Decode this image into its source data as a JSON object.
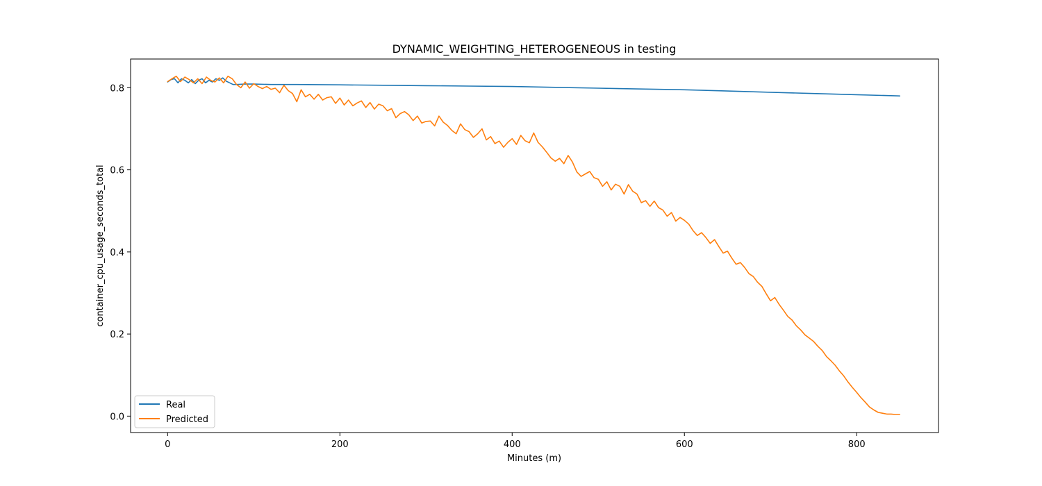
{
  "chart_data": {
    "type": "line",
    "title": "DYNAMIC_WEIGHTING_HETEROGENEOUS in testing",
    "xlabel": "Minutes (m)",
    "ylabel": "container_cpu_usage_seconds_total",
    "xlim": [
      -43,
      895
    ],
    "ylim": [
      -0.04,
      0.87
    ],
    "xticks": [
      0,
      200,
      400,
      600,
      800
    ],
    "yticks": [
      0.0,
      0.2,
      0.4,
      0.6,
      0.8
    ],
    "ytick_labels": [
      "0.0",
      "0.2",
      "0.4",
      "0.6",
      "0.8"
    ],
    "grid": false,
    "legend_position": "lower-left",
    "series": [
      {
        "name": "Real",
        "color": "#1f77b4",
        "x": [
          0,
          4,
          8,
          12,
          16,
          20,
          24,
          28,
          32,
          36,
          40,
          44,
          48,
          52,
          56,
          60,
          64,
          68,
          72,
          76,
          80,
          90,
          100,
          120,
          150,
          200,
          250,
          300,
          350,
          400,
          450,
          500,
          550,
          600,
          650,
          700,
          750,
          800,
          850
        ],
        "y": [
          0.814,
          0.82,
          0.822,
          0.812,
          0.822,
          0.818,
          0.812,
          0.82,
          0.81,
          0.818,
          0.822,
          0.812,
          0.818,
          0.814,
          0.822,
          0.818,
          0.824,
          0.816,
          0.812,
          0.808,
          0.808,
          0.809,
          0.809,
          0.808,
          0.808,
          0.807,
          0.806,
          0.805,
          0.804,
          0.803,
          0.801,
          0.799,
          0.797,
          0.795,
          0.792,
          0.789,
          0.786,
          0.783,
          0.78
        ]
      },
      {
        "name": "Predicted",
        "color": "#ff7f0e",
        "x": [
          0,
          5,
          10,
          15,
          20,
          25,
          30,
          35,
          40,
          45,
          50,
          55,
          60,
          65,
          70,
          75,
          80,
          85,
          90,
          95,
          100,
          105,
          110,
          115,
          120,
          125,
          130,
          135,
          140,
          145,
          150,
          155,
          160,
          165,
          170,
          175,
          180,
          185,
          190,
          195,
          200,
          205,
          210,
          215,
          220,
          225,
          230,
          235,
          240,
          245,
          250,
          255,
          260,
          265,
          270,
          275,
          280,
          285,
          290,
          295,
          300,
          305,
          310,
          315,
          320,
          325,
          330,
          335,
          340,
          345,
          350,
          355,
          360,
          365,
          370,
          375,
          380,
          385,
          390,
          395,
          400,
          405,
          410,
          415,
          420,
          425,
          430,
          435,
          440,
          445,
          450,
          455,
          460,
          465,
          470,
          475,
          480,
          485,
          490,
          495,
          500,
          505,
          510,
          515,
          520,
          525,
          530,
          535,
          540,
          545,
          550,
          555,
          560,
          565,
          570,
          575,
          580,
          585,
          590,
          595,
          600,
          605,
          610,
          615,
          620,
          625,
          630,
          635,
          640,
          645,
          650,
          655,
          660,
          665,
          670,
          675,
          680,
          685,
          690,
          695,
          700,
          705,
          710,
          715,
          720,
          725,
          730,
          735,
          740,
          745,
          750,
          755,
          760,
          765,
          770,
          775,
          780,
          785,
          790,
          795,
          800,
          805,
          810,
          815,
          820,
          825,
          830,
          835,
          840,
          845,
          850
        ],
        "y": [
          0.815,
          0.822,
          0.828,
          0.815,
          0.826,
          0.82,
          0.812,
          0.822,
          0.81,
          0.826,
          0.818,
          0.814,
          0.824,
          0.812,
          0.828,
          0.822,
          0.808,
          0.8,
          0.814,
          0.799,
          0.81,
          0.803,
          0.798,
          0.803,
          0.796,
          0.799,
          0.788,
          0.806,
          0.793,
          0.786,
          0.766,
          0.795,
          0.778,
          0.784,
          0.772,
          0.784,
          0.77,
          0.776,
          0.778,
          0.762,
          0.775,
          0.758,
          0.77,
          0.756,
          0.763,
          0.768,
          0.752,
          0.764,
          0.748,
          0.76,
          0.756,
          0.744,
          0.749,
          0.727,
          0.737,
          0.742,
          0.734,
          0.72,
          0.731,
          0.714,
          0.718,
          0.719,
          0.707,
          0.731,
          0.716,
          0.708,
          0.696,
          0.688,
          0.712,
          0.698,
          0.693,
          0.679,
          0.688,
          0.7,
          0.673,
          0.681,
          0.664,
          0.67,
          0.655,
          0.667,
          0.676,
          0.662,
          0.684,
          0.671,
          0.666,
          0.69,
          0.667,
          0.656,
          0.643,
          0.629,
          0.621,
          0.628,
          0.615,
          0.635,
          0.619,
          0.595,
          0.584,
          0.59,
          0.596,
          0.581,
          0.577,
          0.56,
          0.571,
          0.551,
          0.565,
          0.56,
          0.541,
          0.564,
          0.548,
          0.541,
          0.52,
          0.525,
          0.511,
          0.524,
          0.508,
          0.502,
          0.487,
          0.496,
          0.475,
          0.484,
          0.477,
          0.468,
          0.452,
          0.44,
          0.447,
          0.435,
          0.421,
          0.43,
          0.413,
          0.397,
          0.402,
          0.385,
          0.37,
          0.374,
          0.362,
          0.347,
          0.34,
          0.326,
          0.316,
          0.298,
          0.281,
          0.289,
          0.272,
          0.258,
          0.243,
          0.234,
          0.22,
          0.21,
          0.198,
          0.19,
          0.182,
          0.17,
          0.16,
          0.145,
          0.135,
          0.124,
          0.11,
          0.098,
          0.083,
          0.07,
          0.058,
          0.045,
          0.034,
          0.022,
          0.015,
          0.009,
          0.007,
          0.005,
          0.005,
          0.004,
          0.004
        ]
      }
    ]
  }
}
